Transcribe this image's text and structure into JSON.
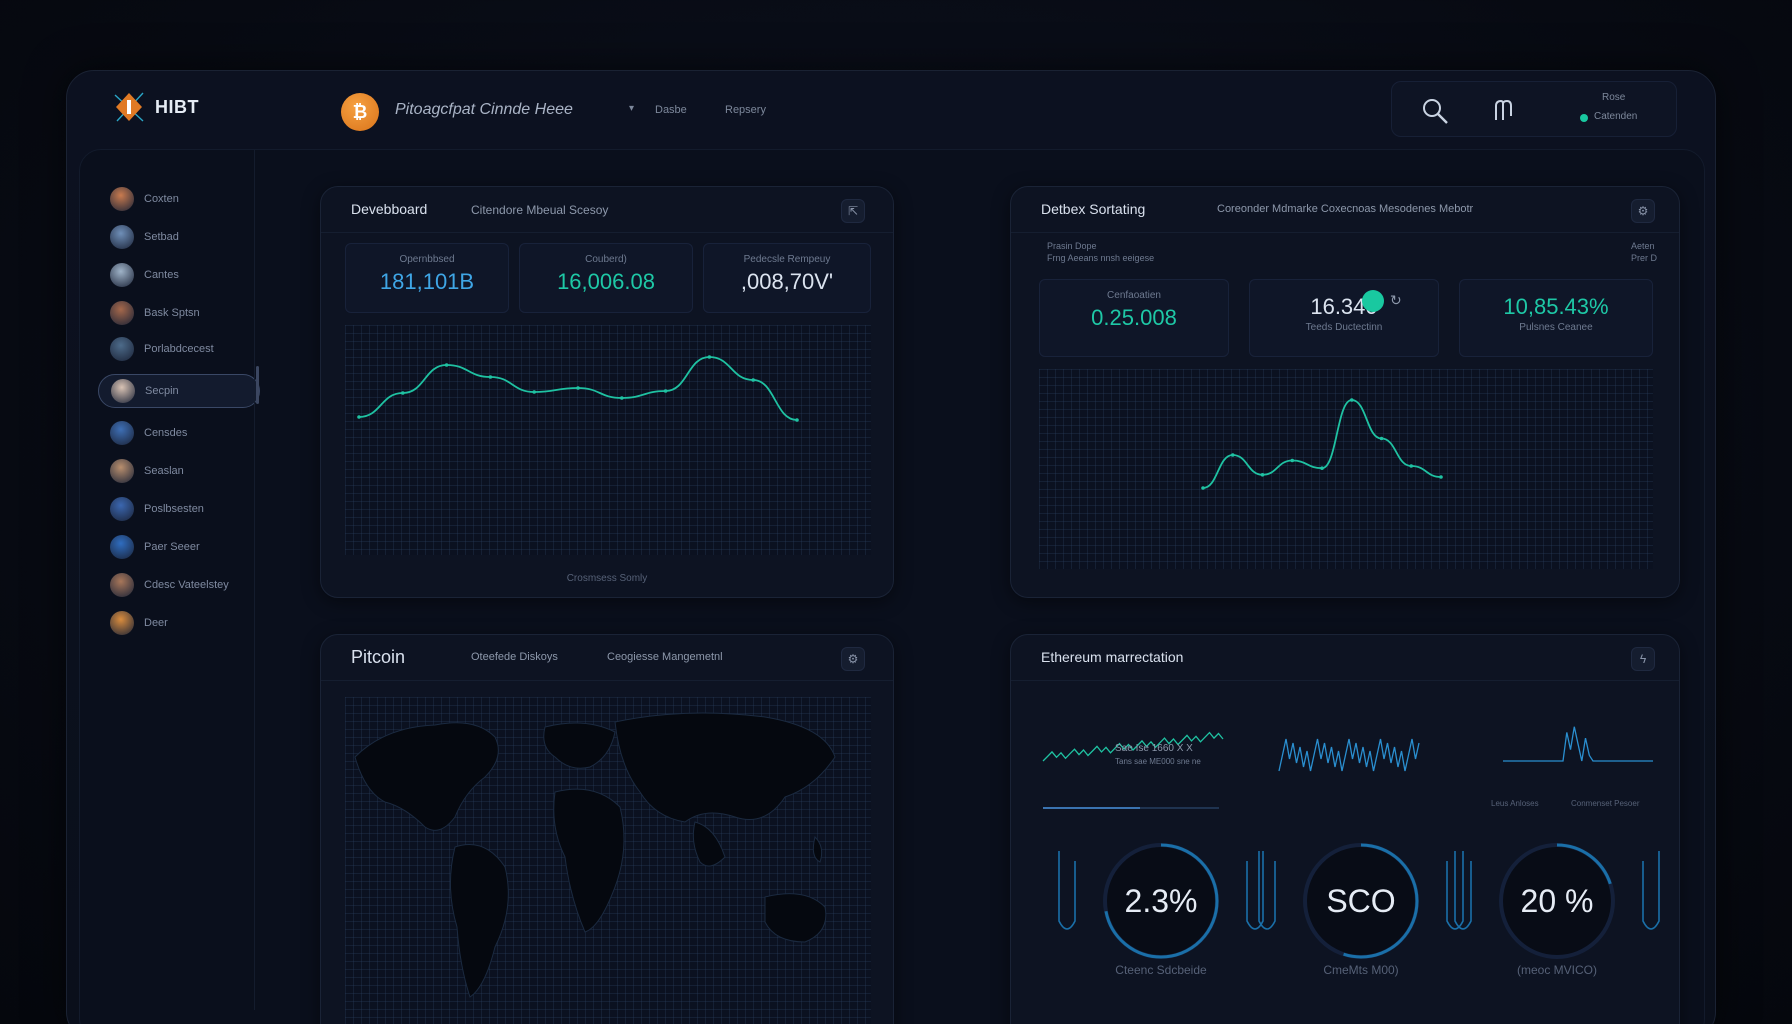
{
  "brand": {
    "name": "HIBT",
    "logo_icon": "hibt-logo-icon",
    "coin_icon": "bitcoin-icon"
  },
  "header": {
    "title": "Pitoagcfpat Cinnde Heee",
    "link_1": "Dasbe",
    "link_2": "Repsery",
    "profile_label": "Rose",
    "status_label": "Catenden",
    "status_color": "#19c8a0"
  },
  "sidebar": {
    "items": [
      {
        "label": "Coxten",
        "avatar_color": "#c97b4f"
      },
      {
        "label": "Setbad",
        "avatar_color": "#6f8fb8"
      },
      {
        "label": "Cantes",
        "avatar_color": "#9fb3c8"
      },
      {
        "label": "Bask Sptsn",
        "avatar_color": "#a5684b"
      },
      {
        "label": "Porlabdcecest",
        "avatar_color": "#4d6b8a"
      },
      {
        "label": "Secpin",
        "avatar_color": "#d9c3b4",
        "active": true
      },
      {
        "label": "Censdes",
        "avatar_color": "#3e6fb5"
      },
      {
        "label": "Seaslan",
        "avatar_color": "#b98f6e"
      },
      {
        "label": "Poslbsesten",
        "avatar_color": "#3b67b0"
      },
      {
        "label": "Paer Seeer",
        "avatar_color": "#2f6dc0"
      },
      {
        "label": "Cdesc Vateelstey",
        "avatar_color": "#a8775a"
      },
      {
        "label": "Deer",
        "avatar_color": "#d98c3e"
      }
    ]
  },
  "panel_dashboard": {
    "title": "Devebboard",
    "subtitle": "Citendore Mbeual Scesoy",
    "button_icon": "expand-icon",
    "stats": [
      {
        "label": "Opernbbsed",
        "value": "181,101B",
        "color": "#3fa6e6"
      },
      {
        "label": "Couberd)",
        "value": "16,006.08",
        "color": "#1ec8a6"
      },
      {
        "label": "Pedecsle Rempeuy",
        "value": ",008,70V'",
        "color": "#dbe3ef"
      }
    ],
    "footer": "Crosmsess Somly",
    "line_color": "#1fc2a2"
  },
  "panel_sorting": {
    "title": "Detbex Sortating",
    "subtitle": "Coreonder Mdmarke Coxecnoas Mesodenes Mebotr",
    "button_icon": "settings-icon",
    "meta_1": "Prasin Dope",
    "meta_2": "Frng Aeeans nnsh eeigese",
    "meta_3": "Aeten",
    "meta_4": "Prer D",
    "stats": [
      {
        "label": "Cenfaoatien",
        "value": "0.25.008",
        "color": "#1ec8a6"
      },
      {
        "label": "Teeds Ductectinn",
        "value": "16.340",
        "color": "#dbe3ef"
      },
      {
        "label": "Pulsnes Ceanee",
        "value": "10,85.43%",
        "color": "#1ec8a6"
      }
    ],
    "line_color": "#1fc2a2"
  },
  "panel_map": {
    "title": "Pitcoin",
    "subtitle_1": "Oteefede Diskoys",
    "subtitle_2": "Ceogiesse Mangemetnl",
    "button_icon": "settings-icon"
  },
  "panel_eth": {
    "title": "Ethereum marrectation",
    "button_icon": "lightning-icon",
    "mini_text_1": "Sae Ise 1660 X X",
    "mini_text_2": "Tans sae ME000 sne ne",
    "mini_label_1": "Leus Anloses",
    "mini_label_2": "Conmenset Pesoer",
    "gauges": [
      {
        "value": "2.3%",
        "label": "Cteenc Sdcbeide",
        "percent": 0.72
      },
      {
        "value": "SCO",
        "label": "CmeMts M00)",
        "percent": 0.55
      },
      {
        "value": "20 %",
        "label": "(meoc MVICO)",
        "percent": 0.2
      }
    ],
    "accent": "#1a6fa8"
  },
  "chart_data": [
    {
      "type": "line",
      "title": "Devebboard",
      "series": [
        {
          "values": [
            0.18,
            0.42,
            0.7,
            0.58,
            0.43,
            0.47,
            0.37,
            0.44,
            0.78,
            0.55,
            0.15
          ]
        }
      ]
    },
    {
      "type": "line",
      "title": "Detbex Sortating",
      "series": [
        {
          "values": [
            0.1,
            0.4,
            0.22,
            0.35,
            0.28,
            0.9,
            0.55,
            0.3,
            0.2
          ]
        }
      ]
    }
  ]
}
